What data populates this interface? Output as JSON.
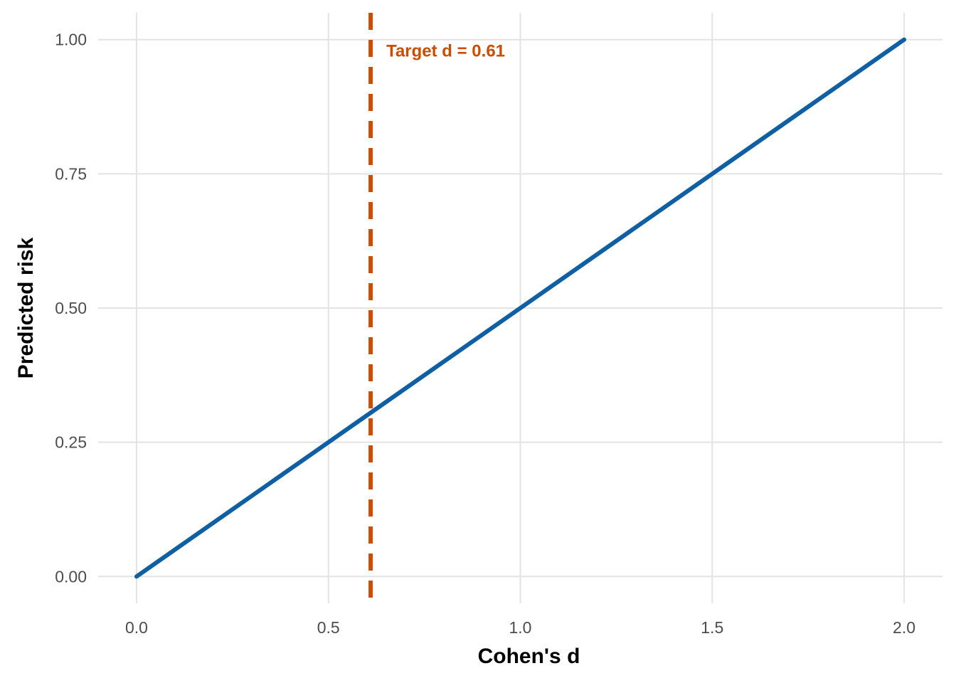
{
  "chart_data": {
    "type": "line",
    "title": "",
    "xlabel": "Cohen's d",
    "ylabel": "Predicted risk",
    "xlim": [
      -0.1,
      2.1
    ],
    "ylim": [
      -0.05,
      1.05
    ],
    "x_ticks": [
      0.0,
      0.5,
      1.0,
      1.5,
      2.0
    ],
    "x_tick_labels": [
      "0.0",
      "0.5",
      "1.0",
      "1.5",
      "2.0"
    ],
    "y_ticks": [
      0.0,
      0.25,
      0.5,
      0.75,
      1.0
    ],
    "y_tick_labels": [
      "0.00",
      "0.25",
      "0.50",
      "0.75",
      "1.00"
    ],
    "grid": true,
    "series": [
      {
        "x": [
          0.0,
          2.0
        ],
        "y": [
          0.0,
          1.0
        ],
        "color": "#0e5fa3"
      }
    ],
    "reference_line": {
      "orientation": "vertical",
      "x": 0.61,
      "style": "dashed",
      "color": "#cc4c02",
      "label": "Target d = 0.61"
    }
  }
}
